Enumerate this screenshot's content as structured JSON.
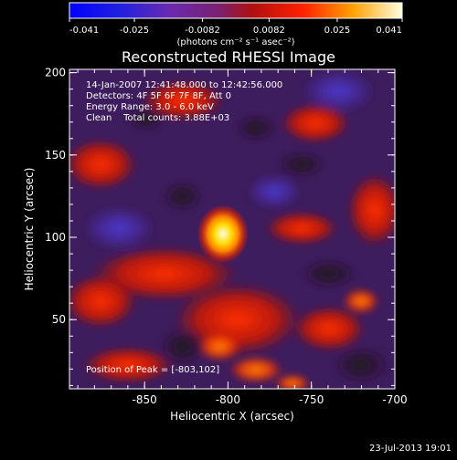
{
  "colorbar": {
    "tick_labels": [
      "-0.041",
      "-0.025",
      "-0.0082",
      "0.0082",
      "0.025",
      "0.041"
    ],
    "tick_values": [
      -0.041,
      -0.025,
      -0.0082,
      0.0082,
      0.025,
      0.041
    ],
    "units_label": "(photons cm⁻² s⁻¹ asec⁻²)"
  },
  "chart_data": {
    "type": "heatmap",
    "title": "Reconstructed RHESSI Image",
    "xlabel": "Heliocentric X (arcsec)",
    "ylabel": "Heliocentric Y (arcsec)",
    "xlim": [
      -895,
      -700
    ],
    "ylim": [
      8,
      202
    ],
    "x_ticks": [
      -850,
      -800,
      -750,
      -700
    ],
    "y_ticks": [
      50,
      100,
      150,
      200
    ],
    "x_tick_labels": [
      "-850",
      "-800",
      "-750",
      "-700"
    ],
    "y_tick_labels": [
      "50",
      "100",
      "150",
      "200"
    ],
    "value_range": [
      -0.041,
      0.041
    ],
    "peak": {
      "x": -803,
      "y": 102,
      "value": 0.041
    },
    "annotations": [
      "14-Jan-2007 12:41:48.000 to 12:42:56.000",
      "Detectors: 4F 5F 6F 7F 8F, Att 0",
      "Energy Range: 3.0 - 6.0 keV",
      "Clean    Total counts: 3.88E+03"
    ],
    "peak_label": "Position of Peak = [-803,102]"
  },
  "footer": {
    "timestamp": "23-Jul-2013 19:01"
  }
}
